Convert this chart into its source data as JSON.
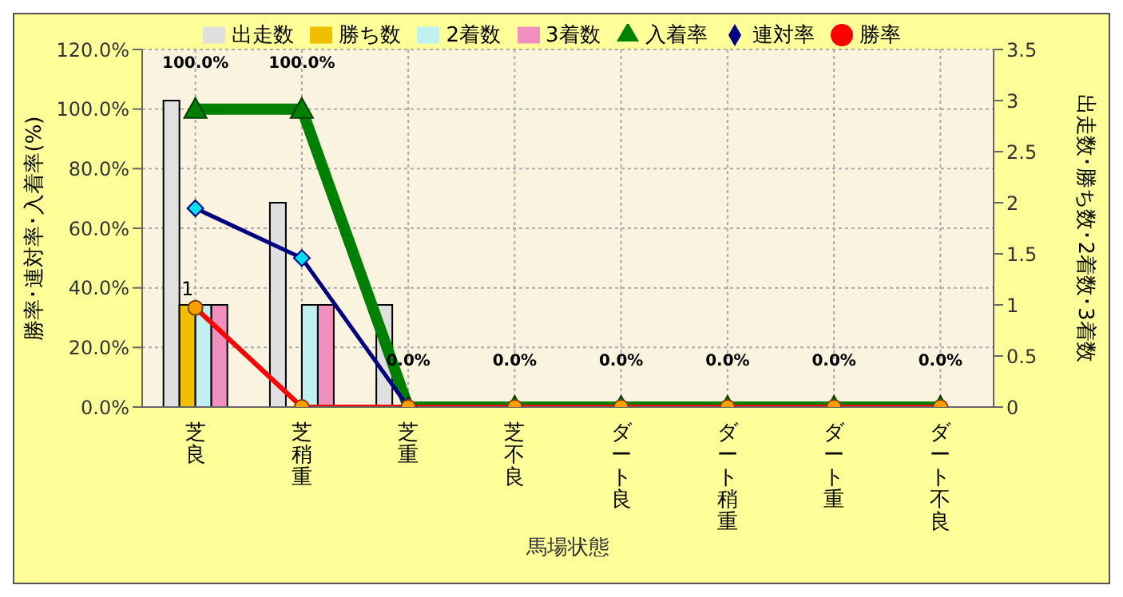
{
  "chart_data": {
    "type": "bar",
    "xlabel": "馬場状態",
    "ylabel": "勝率･連対率･入着率(%)",
    "y2label": "出走数･勝ち数･2着数･3着数",
    "categories": [
      "芝良",
      "芝稍重",
      "芝重",
      "芝不良",
      "ダート良",
      "ダート稍重",
      "ダート重",
      "ダート不良"
    ],
    "series": [
      {
        "name": "出走数",
        "axis": "y2",
        "color": "#e0e0e0",
        "values": [
          3,
          2,
          1,
          0,
          0,
          0,
          0,
          0
        ]
      },
      {
        "name": "勝ち数",
        "axis": "y2",
        "color": "#f0c000",
        "values": [
          1,
          0,
          0,
          0,
          0,
          0,
          0,
          0
        ],
        "value_labels": [
          "1",
          null,
          null,
          null,
          null,
          null,
          null,
          null
        ]
      },
      {
        "name": "2着数",
        "axis": "y2",
        "color": "#c0f0f0",
        "values": [
          1,
          1,
          0,
          0,
          0,
          0,
          0,
          0
        ]
      },
      {
        "name": "3着数",
        "axis": "y2",
        "color": "#f090c0",
        "values": [
          1,
          1,
          0,
          0,
          0,
          0,
          0,
          0
        ]
      },
      {
        "name": "入着率",
        "type": "line",
        "color": "#008000",
        "marker": "triangle",
        "values": [
          100,
          100,
          0,
          0,
          0,
          0,
          0,
          0
        ],
        "value_labels": [
          "100.0%",
          "100.0%",
          "0.0%",
          "0.0%",
          "0.0%",
          "0.0%",
          "0.0%",
          "0.0%"
        ]
      },
      {
        "name": "連対率",
        "type": "line",
        "color": "#000080",
        "marker": "diamond",
        "values": [
          66.7,
          50,
          0,
          null,
          null,
          null,
          null,
          null
        ]
      },
      {
        "name": "勝率",
        "type": "line",
        "color": "#ff0000",
        "marker": "circle",
        "values": [
          33.3,
          0,
          0,
          0,
          0,
          0,
          0,
          0
        ]
      }
    ],
    "ylim": [
      0,
      120
    ],
    "yticks": [
      {
        "value": 0,
        "label": "0.0%"
      },
      {
        "value": 20,
        "label": "20.0%"
      },
      {
        "value": 40,
        "label": "40.0%"
      },
      {
        "value": 60,
        "label": "60.0%"
      },
      {
        "value": 80,
        "label": "80.0%"
      },
      {
        "value": 100,
        "label": "100.0%"
      },
      {
        "value": 120,
        "label": "120.0%"
      }
    ],
    "y2lim": [
      0,
      3.5
    ],
    "y2ticks": [
      0,
      0.5,
      1,
      1.5,
      2,
      2.5,
      3,
      3.5
    ],
    "grid": true,
    "legend": "top"
  }
}
